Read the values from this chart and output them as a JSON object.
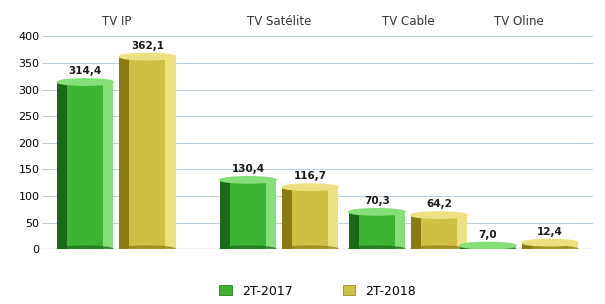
{
  "categories": [
    "TV IP",
    "TV Satélite",
    "TV Cable",
    "TV Oline"
  ],
  "values_2017": [
    314.4,
    130.4,
    70.3,
    7.0
  ],
  "values_2018": [
    362.1,
    116.7,
    64.2,
    12.4
  ],
  "color_2017_main": "#3db334",
  "color_2017_dark": "#1a6b16",
  "color_2017_light": "#85e07a",
  "color_2018_main": "#cfc044",
  "color_2018_dark": "#8a7a10",
  "color_2018_light": "#ede080",
  "ylim": [
    0,
    400
  ],
  "yticks": [
    0,
    50,
    100,
    150,
    200,
    250,
    300,
    350,
    400
  ],
  "legend_labels": [
    "2T-2017",
    "2T-2018"
  ],
  "background_color": "#ffffff",
  "grid_color": "#b8cfe0",
  "bar_width": 0.38,
  "group_positions": [
    0.38,
    1.48,
    2.35,
    3.1
  ],
  "bar_gap": 0.04
}
